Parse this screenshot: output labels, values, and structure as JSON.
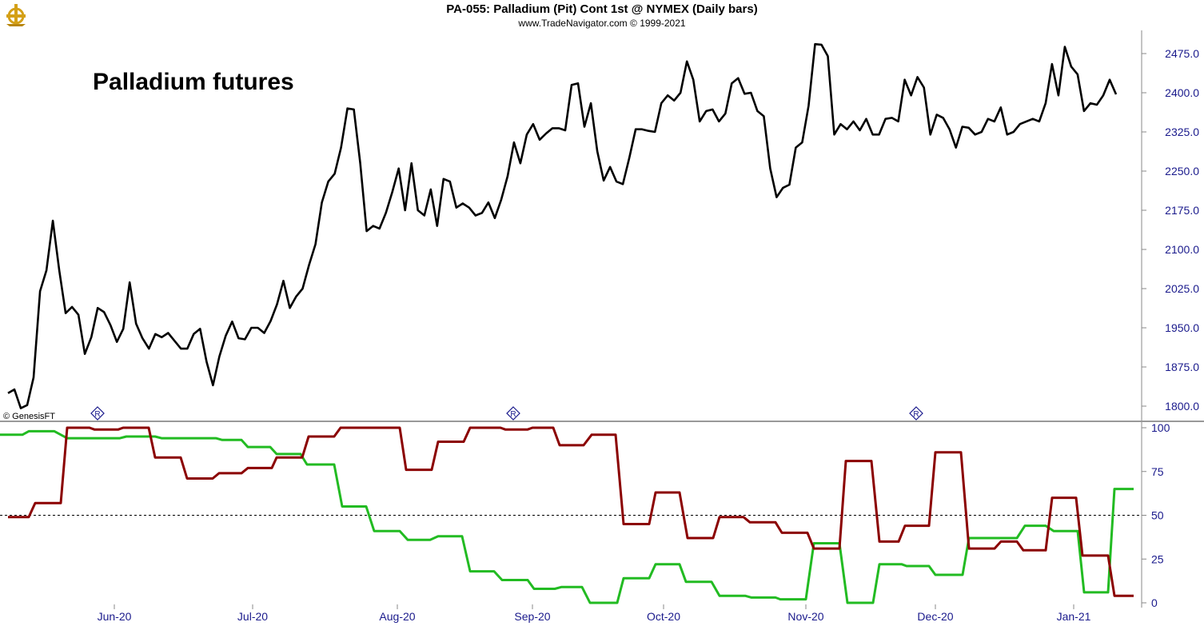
{
  "header": {
    "title": "PA-055:  Palladium (Pit) Cont 1st @ NYMEX  (Daily bars)",
    "subtitle": "www.TradeNavigator.com © 1999-2021",
    "logo_icon": "trade-navigator-ship-wheel-icon"
  },
  "annotation": "Palladium futures",
  "credit": "© GenesisFT",
  "colors": {
    "price_line": "#000000",
    "green_line": "#22bb22",
    "red_line": "#8b0000",
    "axis_text": "#1a1a8c",
    "marker": "#1a1a8c"
  },
  "chart_data": [
    {
      "type": "line",
      "title": "Palladium futures",
      "y_ticks": [
        "2475.0",
        "2400.0",
        "2325.0",
        "2250.0",
        "2175.0",
        "2100.0",
        "2025.0",
        "1950.0",
        "1875.0",
        "1800.0"
      ],
      "ylim": [
        1790,
        2495
      ],
      "x_ticks": [
        "Jun-20",
        "Jul-20",
        "Aug-20",
        "Sep-20",
        "Oct-20",
        "Nov-20",
        "Dec-20",
        "Jan-21"
      ],
      "grid": false,
      "series": [
        {
          "values": [
            1825,
            1832,
            1796,
            1802,
            1855,
            2020,
            2060,
            2155,
            2060,
            1978,
            1990,
            1975,
            1900,
            1932,
            1988,
            1980,
            1955,
            1923,
            1948,
            2037,
            1958,
            1930,
            1910,
            1938,
            1932,
            1940,
            1925,
            1910,
            1910,
            1938,
            1948,
            1885,
            1840,
            1895,
            1935,
            1962,
            1930,
            1928,
            1950,
            1950,
            1940,
            1963,
            1995,
            2040,
            1988,
            2010,
            2025,
            2070,
            2110,
            2190,
            2230,
            2245,
            2295,
            2370,
            2368,
            2265,
            2135,
            2145,
            2140,
            2170,
            2210,
            2255,
            2175,
            2265,
            2175,
            2165,
            2215,
            2145,
            2235,
            2230,
            2180,
            2188,
            2180,
            2165,
            2170,
            2190,
            2160,
            2195,
            2240,
            2305,
            2265,
            2320,
            2340,
            2310,
            2322,
            2332,
            2332,
            2328,
            2415,
            2418,
            2335,
            2380,
            2288,
            2232,
            2258,
            2230,
            2225,
            2275,
            2330,
            2330,
            2327,
            2325,
            2380,
            2395,
            2385,
            2400,
            2460,
            2425,
            2345,
            2365,
            2368,
            2345,
            2360,
            2418,
            2428,
            2398,
            2400,
            2365,
            2355,
            2255,
            2200,
            2218,
            2224,
            2295,
            2305,
            2375,
            2493,
            2492,
            2470,
            2320,
            2340,
            2330,
            2345,
            2328,
            2350,
            2320,
            2320,
            2350,
            2352,
            2345,
            2425,
            2395,
            2430,
            2410,
            2320,
            2358,
            2352,
            2330,
            2295,
            2335,
            2333,
            2320,
            2325,
            2350,
            2345,
            2372,
            2320,
            2325,
            2340,
            2345,
            2350,
            2345,
            2380,
            2455,
            2395,
            2488,
            2450,
            2435,
            2365,
            2380,
            2377,
            2395,
            2425,
            2397
          ]
        }
      ]
    },
    {
      "type": "line",
      "y_ticks": [
        "100",
        "75",
        "50",
        "25",
        "0"
      ],
      "ylim": [
        -2,
        104
      ],
      "x_ticks": [
        "Jun-20",
        "Jul-20",
        "Aug-20",
        "Sep-20",
        "Oct-20",
        "Nov-20",
        "Dec-20",
        "Jan-21"
      ],
      "reference_line": 50,
      "grid": false,
      "series": [
        {
          "color": "green",
          "points": [
            [
              0,
              96
            ],
            [
              28,
              96
            ],
            [
              36,
              98
            ],
            [
              68,
              98
            ],
            [
              84,
              94
            ],
            [
              150,
              94
            ],
            [
              158,
              95
            ],
            [
              194,
              95
            ],
            [
              202,
              94
            ],
            [
              270,
              94
            ],
            [
              278,
              93
            ],
            [
              302,
              93
            ],
            [
              310,
              89
            ],
            [
              338,
              89
            ],
            [
              346,
              85
            ],
            [
              376,
              85
            ],
            [
              384,
              79
            ],
            [
              418,
              79
            ],
            [
              428,
              55
            ],
            [
              458,
              55
            ],
            [
              468,
              41
            ],
            [
              500,
              41
            ],
            [
              510,
              36
            ],
            [
              538,
              36
            ],
            [
              548,
              38
            ],
            [
              578,
              38
            ],
            [
              588,
              18
            ],
            [
              618,
              18
            ],
            [
              628,
              13
            ],
            [
              660,
              13
            ],
            [
              668,
              8
            ],
            [
              694,
              8
            ],
            [
              702,
              9
            ],
            [
              728,
              9
            ],
            [
              738,
              0
            ],
            [
              772,
              0
            ],
            [
              780,
              14
            ],
            [
              812,
              14
            ],
            [
              820,
              22
            ],
            [
              850,
              22
            ],
            [
              858,
              12
            ],
            [
              890,
              12
            ],
            [
              900,
              4
            ],
            [
              932,
              4
            ],
            [
              940,
              3
            ],
            [
              970,
              3
            ],
            [
              976,
              2
            ],
            [
              1008,
              2
            ],
            [
              1018,
              34
            ],
            [
              1050,
              34
            ],
            [
              1060,
              0
            ],
            [
              1092,
              0
            ],
            [
              1100,
              22
            ],
            [
              1128,
              22
            ],
            [
              1134,
              21
            ],
            [
              1162,
              21
            ],
            [
              1170,
              16
            ],
            [
              1204,
              16
            ],
            [
              1212,
              37
            ],
            [
              1272,
              37
            ],
            [
              1282,
              44
            ],
            [
              1308,
              44
            ],
            [
              1318,
              41
            ],
            [
              1348,
              41
            ],
            [
              1356,
              6
            ],
            [
              1386,
              6
            ],
            [
              1394,
              65
            ],
            [
              1418,
              65
            ]
          ]
        },
        {
          "color": "red",
          "points": [
            [
              10,
              49
            ],
            [
              36,
              49
            ],
            [
              44,
              57
            ],
            [
              76,
              57
            ],
            [
              84,
              100
            ],
            [
              112,
              100
            ],
            [
              118,
              99
            ],
            [
              148,
              99
            ],
            [
              154,
              100
            ],
            [
              186,
              100
            ],
            [
              194,
              83
            ],
            [
              226,
              83
            ],
            [
              234,
              71
            ],
            [
              266,
              71
            ],
            [
              274,
              74
            ],
            [
              302,
              74
            ],
            [
              310,
              77
            ],
            [
              340,
              77
            ],
            [
              346,
              83
            ],
            [
              378,
              83
            ],
            [
              386,
              95
            ],
            [
              418,
              95
            ],
            [
              426,
              100
            ],
            [
              500,
              100
            ],
            [
              508,
              76
            ],
            [
              540,
              76
            ],
            [
              548,
              92
            ],
            [
              580,
              92
            ],
            [
              588,
              100
            ],
            [
              626,
              100
            ],
            [
              632,
              99
            ],
            [
              660,
              99
            ],
            [
              666,
              100
            ],
            [
              692,
              100
            ],
            [
              700,
              90
            ],
            [
              730,
              90
            ],
            [
              740,
              96
            ],
            [
              770,
              96
            ],
            [
              780,
              45
            ],
            [
              812,
              45
            ],
            [
              820,
              63
            ],
            [
              850,
              63
            ],
            [
              860,
              37
            ],
            [
              892,
              37
            ],
            [
              900,
              49
            ],
            [
              930,
              49
            ],
            [
              938,
              46
            ],
            [
              970,
              46
            ],
            [
              978,
              40
            ],
            [
              1010,
              40
            ],
            [
              1018,
              31
            ],
            [
              1050,
              31
            ],
            [
              1058,
              81
            ],
            [
              1090,
              81
            ],
            [
              1100,
              35
            ],
            [
              1124,
              35
            ],
            [
              1132,
              44
            ],
            [
              1162,
              44
            ],
            [
              1170,
              86
            ],
            [
              1202,
              86
            ],
            [
              1212,
              31
            ],
            [
              1244,
              31
            ],
            [
              1252,
              35
            ],
            [
              1272,
              35
            ],
            [
              1280,
              30
            ],
            [
              1308,
              30
            ],
            [
              1316,
              60
            ],
            [
              1346,
              60
            ],
            [
              1354,
              27
            ],
            [
              1386,
              27
            ],
            [
              1394,
              4
            ],
            [
              1418,
              4
            ]
          ]
        }
      ]
    }
  ],
  "markers": [
    {
      "label": "R",
      "icon": "rollover-diamond-icon"
    },
    {
      "label": "R",
      "icon": "rollover-diamond-icon"
    },
    {
      "label": "R",
      "icon": "rollover-diamond-icon"
    }
  ]
}
